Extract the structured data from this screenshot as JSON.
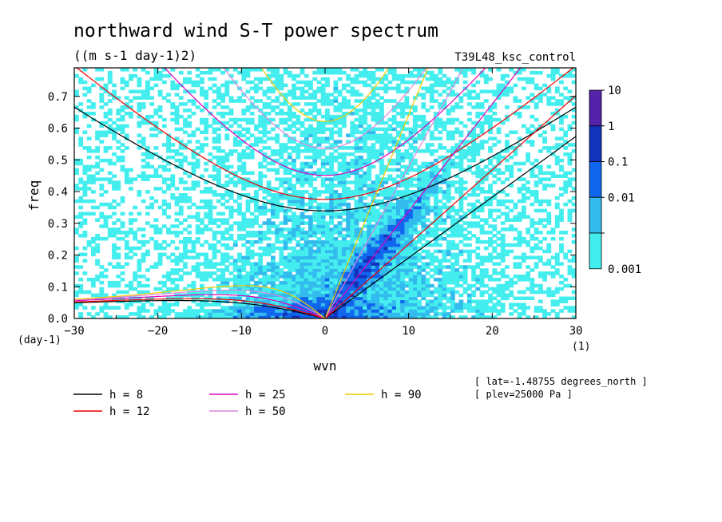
{
  "chart_data": {
    "type": "heatmap",
    "title": "northward wind S-T power spectrum",
    "subtitle": "((m s-1 day-1)2)",
    "run_label": "T39L48_ksc_control",
    "xlabel": "wvn",
    "xunit": "(1)",
    "ylabel": "freq",
    "yunit": "(day-1)",
    "xlim": [
      -30,
      30
    ],
    "ylim": [
      0,
      0.79
    ],
    "xticks": [
      -30,
      -20,
      -10,
      0,
      10,
      20,
      30
    ],
    "yticks": [
      0.0,
      0.1,
      0.2,
      0.3,
      0.4,
      0.5,
      0.6,
      0.7
    ],
    "colorbar": {
      "levels": [
        "10",
        "1",
        "0.1",
        "0.01",
        "0.001"
      ],
      "colors": [
        "#5522aa",
        "#1133bb",
        "#1166ee",
        "#33bbee",
        "#44eeee"
      ]
    },
    "legend": [
      {
        "label": "h =  8",
        "color": "#000000",
        "h": 8
      },
      {
        "label": "h = 12",
        "color": "#ee0000",
        "h": 12
      },
      {
        "label": "h = 25",
        "color": "#dd00bb",
        "h": 25
      },
      {
        "label": "h = 50",
        "color": "#dd88dd",
        "h": 50
      },
      {
        "label": "h = 90",
        "color": "#eecc00",
        "h": 90
      }
    ],
    "annotations": [
      "[ lat=-1.48755 degrees_north ]",
      "[ plev=25000 Pa ]"
    ]
  }
}
